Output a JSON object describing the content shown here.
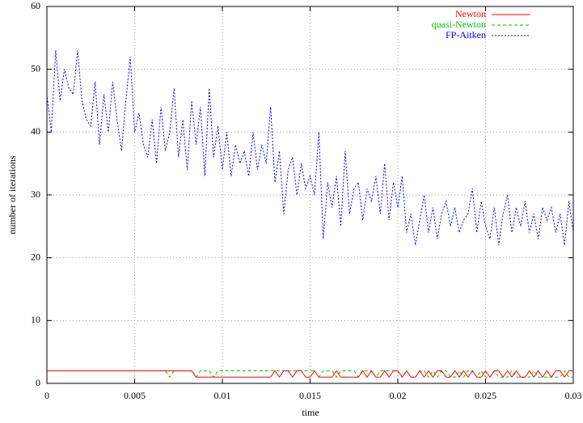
{
  "chart_data": {
    "type": "line",
    "x_label": "time",
    "y_label": "number of iterations",
    "xlim": [
      0,
      0.03
    ],
    "ylim": [
      0,
      60
    ],
    "xticks": [
      0,
      0.005,
      0.01,
      0.015,
      0.02,
      0.025,
      0.03
    ],
    "yticks": [
      0,
      10,
      20,
      30,
      40,
      50,
      60
    ],
    "grid": true,
    "legend": "top-right",
    "x": [
      0,
      0.00025,
      0.0005,
      0.00075,
      0.001,
      0.00125,
      0.0015,
      0.00175,
      0.002,
      0.00225,
      0.0025,
      0.00275,
      0.003,
      0.00325,
      0.0035,
      0.00375,
      0.004,
      0.00425,
      0.0045,
      0.00475,
      0.005,
      0.00525,
      0.0055,
      0.00575,
      0.006,
      0.00625,
      0.0065,
      0.00675,
      0.007,
      0.00725,
      0.0075,
      0.00775,
      0.008,
      0.00825,
      0.0085,
      0.00875,
      0.009,
      0.00925,
      0.0095,
      0.00975,
      0.01,
      0.01025,
      0.0105,
      0.01075,
      0.011,
      0.01125,
      0.0115,
      0.01175,
      0.012,
      0.01225,
      0.0125,
      0.01275,
      0.013,
      0.01325,
      0.0135,
      0.01375,
      0.014,
      0.01425,
      0.0145,
      0.01475,
      0.015,
      0.01525,
      0.0155,
      0.01575,
      0.016,
      0.01625,
      0.0165,
      0.01675,
      0.017,
      0.01725,
      0.0175,
      0.01775,
      0.018,
      0.01825,
      0.0185,
      0.01875,
      0.019,
      0.01925,
      0.0195,
      0.01975,
      0.02,
      0.02025,
      0.0205,
      0.02075,
      0.021,
      0.02125,
      0.0215,
      0.02175,
      0.022,
      0.02225,
      0.0225,
      0.02275,
      0.023,
      0.02325,
      0.0235,
      0.02375,
      0.024,
      0.02425,
      0.0245,
      0.02475,
      0.025,
      0.02525,
      0.0255,
      0.02575,
      0.026,
      0.02625,
      0.0265,
      0.02675,
      0.027,
      0.02725,
      0.0275,
      0.02775,
      0.028,
      0.02825,
      0.0285,
      0.02875,
      0.029,
      0.02925,
      0.0295,
      0.02975,
      0.03
    ],
    "series": [
      {
        "name": "Newton",
        "color": "#ff0000",
        "values": [
          2,
          2,
          2,
          2,
          2,
          2,
          2,
          2,
          2,
          2,
          2,
          2,
          2,
          2,
          2,
          2,
          2,
          2,
          2,
          2,
          2,
          2,
          2,
          2,
          2,
          2,
          2,
          2,
          2,
          2,
          2,
          2,
          2,
          2,
          1,
          1,
          1,
          1,
          1,
          1,
          1,
          1,
          1,
          1,
          1,
          1,
          1,
          1,
          1,
          1,
          1,
          1,
          2,
          1,
          2,
          2,
          1,
          2,
          2,
          1,
          1,
          2,
          1,
          1,
          1,
          1,
          2,
          1,
          1,
          1,
          1,
          1,
          2,
          1,
          2,
          1,
          1,
          2,
          1,
          2,
          2,
          1,
          2,
          1,
          1,
          2,
          1,
          2,
          1,
          2,
          2,
          1,
          1,
          2,
          1,
          2,
          1,
          2,
          1,
          1,
          2,
          1,
          2,
          2,
          1,
          2,
          1,
          2,
          1,
          1,
          2,
          1,
          2,
          1,
          2,
          1,
          2,
          2,
          1,
          2,
          2
        ]
      },
      {
        "name": "quasi-Newton",
        "color": "#00c000",
        "values": [
          2,
          2,
          2,
          2,
          2,
          2,
          2,
          2,
          2,
          2,
          2,
          2,
          2,
          2,
          2,
          2,
          2,
          2,
          2,
          2,
          2,
          2,
          2,
          2,
          2,
          2,
          2,
          2,
          1,
          2,
          2,
          2,
          2,
          2,
          1,
          2,
          2,
          2,
          1,
          2,
          2,
          2,
          2,
          2,
          2,
          2,
          2,
          2,
          2,
          2,
          2,
          2,
          2,
          2,
          2,
          2,
          2,
          2,
          2,
          2,
          2,
          2,
          1,
          2,
          2,
          2,
          1,
          2,
          2,
          2,
          2,
          1,
          2,
          2,
          2,
          1,
          2,
          2,
          2,
          2,
          2,
          1,
          2,
          1,
          1,
          2,
          2,
          1,
          2,
          1,
          2,
          2,
          1,
          1,
          2,
          1,
          2,
          2,
          1,
          2,
          1,
          1,
          2,
          1,
          1,
          1,
          2,
          1,
          1,
          1,
          1,
          2,
          1,
          1,
          1,
          1,
          1,
          1,
          2,
          1,
          1
        ]
      },
      {
        "name": "FP-Aitken",
        "color": "#0000ff",
        "values": [
          46,
          40,
          53,
          45,
          50,
          47,
          46,
          53,
          45,
          42,
          41,
          48,
          38,
          46,
          40,
          48,
          42,
          37,
          45,
          52,
          40,
          43,
          38,
          36,
          42,
          35,
          44,
          37,
          40,
          47,
          36,
          42,
          34,
          45,
          38,
          44,
          33,
          47,
          36,
          41,
          34,
          40,
          33,
          38,
          35,
          37,
          33,
          40,
          34,
          38,
          35,
          44,
          32,
          37,
          27,
          34,
          36,
          30,
          35,
          31,
          33,
          30,
          40,
          23,
          32,
          28,
          33,
          25,
          37,
          27,
          31,
          32,
          26,
          31,
          29,
          33,
          27,
          35,
          26,
          32,
          28,
          33,
          24,
          27,
          22,
          26,
          30,
          24,
          28,
          23,
          27,
          29,
          25,
          28,
          24,
          26,
          27,
          31,
          24,
          29,
          25,
          23,
          28,
          22,
          27,
          30,
          24,
          28,
          25,
          29,
          24,
          27,
          23,
          28,
          26,
          28,
          24,
          27,
          22,
          29,
          24
        ]
      }
    ]
  }
}
